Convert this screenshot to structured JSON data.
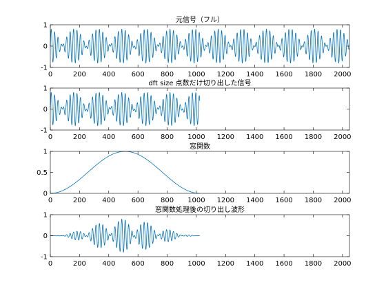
{
  "chart_data": [
    {
      "type": "line",
      "title": "元信号（フル）",
      "xlim": [
        0,
        2048
      ],
      "ylim": [
        -1,
        1
      ],
      "xticks": [
        0,
        200,
        400,
        600,
        800,
        1000,
        1200,
        1400,
        1600,
        1800,
        2000
      ],
      "yticks": [
        -1,
        0,
        1
      ],
      "series": [
        {
          "signal": "sum of two sinusoids, 0.4·sin + 0.4·sin, period ≈ 22 and ≈ 25.4 samples",
          "x_range": [
            0,
            2048
          ],
          "y_range": [
            -0.8,
            0.8
          ],
          "color": "#0072bd"
        }
      ]
    },
    {
      "type": "line",
      "title": "dft size 点数だけ切り出した信号",
      "xlim": [
        0,
        2048
      ],
      "ylim": [
        -1,
        1
      ],
      "xticks": [
        0,
        200,
        400,
        600,
        800,
        1000,
        1200,
        1400,
        1600,
        1800,
        2000
      ],
      "yticks": [
        -1,
        0,
        1
      ],
      "series": [
        {
          "signal": "first 1024 samples of the full signal",
          "x_range": [
            0,
            1024
          ],
          "y_range": [
            -0.8,
            0.8
          ],
          "color": "#0072bd"
        }
      ]
    },
    {
      "type": "line",
      "title": "窓関数",
      "xlim": [
        0,
        2048
      ],
      "ylim": [
        0,
        1
      ],
      "xticks": [
        0,
        200,
        400,
        600,
        800,
        1000,
        1200,
        1400,
        1600,
        1800,
        2000
      ],
      "yticks": [
        0,
        0.5,
        1
      ],
      "series": [
        {
          "signal": "Hann window, 1024 points, peak 1 at x = 512",
          "x": [
            0,
            128,
            256,
            384,
            512,
            640,
            768,
            896,
            1024
          ],
          "y": [
            0,
            0.146,
            0.5,
            0.854,
            1,
            0.854,
            0.5,
            0.146,
            0
          ],
          "color": "#0072bd"
        }
      ]
    },
    {
      "type": "line",
      "title": "窓関数処理後の切り出し波形",
      "xlim": [
        0,
        2048
      ],
      "ylim": [
        -1,
        1
      ],
      "xticks": [
        0,
        200,
        400,
        600,
        800,
        1000,
        1200,
        1400,
        1600,
        1800,
        2000
      ],
      "yticks": [
        -1,
        0,
        1
      ],
      "series": [
        {
          "signal": "cropped signal × Hann window, max |y| ≈ 0.8 at x ≈ 512",
          "x_range": [
            0,
            1024
          ],
          "y_range": [
            -0.8,
            0.8
          ],
          "color": "#0072bd"
        }
      ]
    }
  ],
  "colors": {
    "line": "#0072bd",
    "axes": "#000000",
    "background": "#ffffff"
  }
}
